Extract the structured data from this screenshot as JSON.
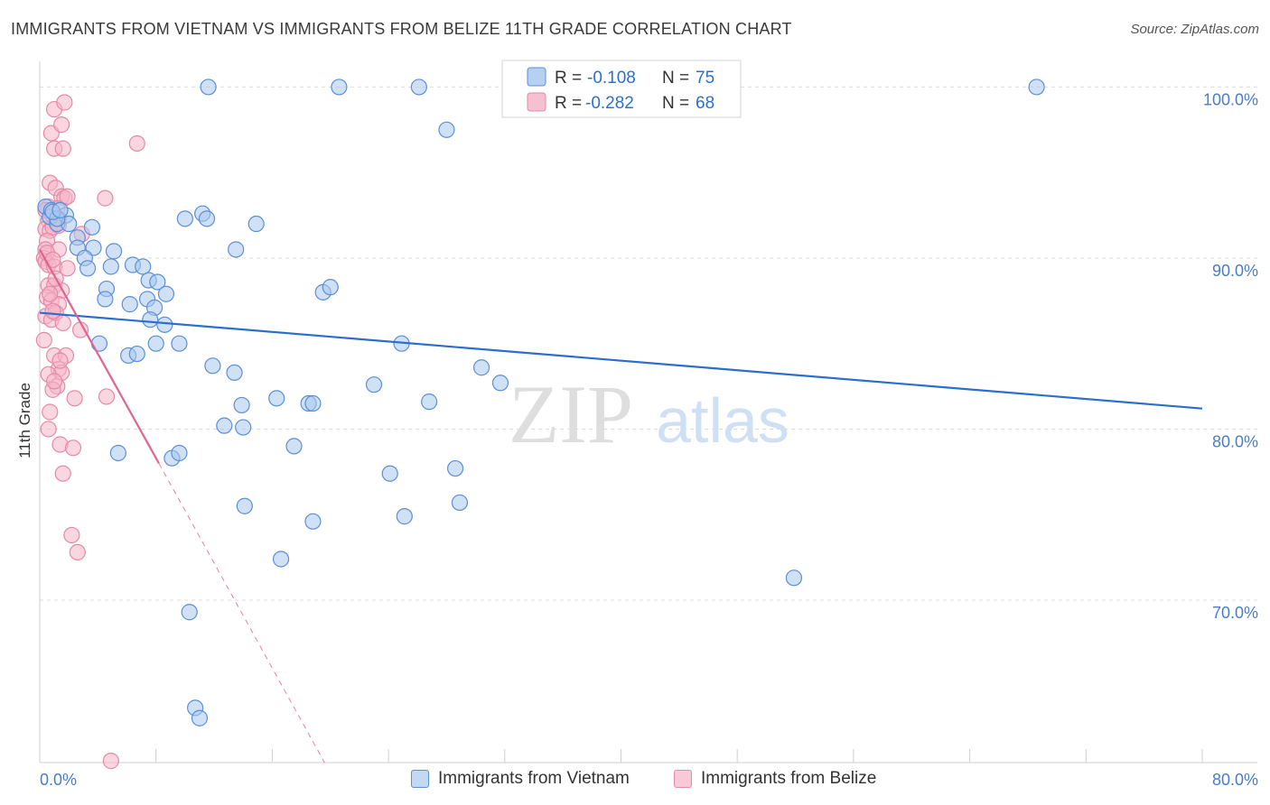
{
  "chart_data": {
    "type": "scatter",
    "title": "IMMIGRANTS FROM VIETNAM VS IMMIGRANTS FROM BELIZE 11TH GRADE CORRELATION CHART",
    "source": "Source: ZipAtlas.com",
    "ylabel": "11th Grade",
    "xlabel": "",
    "xlim": [
      0,
      80
    ],
    "ylim": [
      60.5,
      101.5
    ],
    "x_tick_labels": [
      "0.0%",
      "80.0%"
    ],
    "y_ticks": [
      70,
      80,
      90,
      100
    ],
    "y_tick_labels": [
      "70.0%",
      "80.0%",
      "90.0%",
      "100.0%"
    ],
    "watermark": {
      "zip": "ZIP",
      "atlas": "atlas"
    },
    "legend": {
      "r_label": "R =",
      "n_label": "N =",
      "entries": [
        {
          "name": "Immigrants from Vietnam",
          "r": "-0.108",
          "n": "75"
        },
        {
          "name": "Immigrants from Belize",
          "r": "-0.282",
          "n": "68"
        }
      ]
    },
    "colors": {
      "vietnam_fill": "#a9c8ee",
      "vietnam_stroke": "#5b8fd6",
      "vietnam_line": "#2b6fcc",
      "belize_fill": "#f6b5c8",
      "belize_stroke": "#e58aa6",
      "belize_line": "#e0648f",
      "tick_label": "#4b7cc9",
      "grid": "#dcdcdc"
    },
    "series": [
      {
        "name": "Immigrants from Vietnam",
        "trend": {
          "x0": 0,
          "y0": 86.8,
          "x1": 80,
          "y1": 81.2,
          "dashed_to": null
        },
        "points": [
          [
            0.4,
            93.0
          ],
          [
            0.7,
            92.4
          ],
          [
            0.8,
            92.8
          ],
          [
            1.2,
            92.0
          ],
          [
            1.8,
            92.5
          ],
          [
            2.0,
            92.0
          ],
          [
            1.2,
            92.3
          ],
          [
            3.6,
            91.8
          ],
          [
            2.6,
            91.2
          ],
          [
            2.6,
            90.6
          ],
          [
            3.7,
            90.6
          ],
          [
            3.1,
            90.0
          ],
          [
            5.1,
            90.4
          ],
          [
            3.3,
            89.4
          ],
          [
            4.9,
            89.5
          ],
          [
            6.4,
            89.6
          ],
          [
            7.1,
            89.5
          ],
          [
            7.5,
            88.7
          ],
          [
            8.1,
            88.6
          ],
          [
            4.6,
            88.2
          ],
          [
            8.7,
            87.9
          ],
          [
            4.5,
            87.6
          ],
          [
            7.4,
            87.6
          ],
          [
            6.2,
            87.3
          ],
          [
            7.9,
            87.1
          ],
          [
            7.6,
            86.4
          ],
          [
            8.6,
            86.1
          ],
          [
            4.1,
            85.0
          ],
          [
            8.0,
            85.0
          ],
          [
            9.6,
            85.0
          ],
          [
            6.1,
            84.3
          ],
          [
            6.7,
            84.4
          ],
          [
            11.9,
            83.7
          ],
          [
            13.4,
            83.3
          ],
          [
            10.0,
            92.3
          ],
          [
            11.2,
            92.6
          ],
          [
            11.5,
            92.3
          ],
          [
            14.9,
            92.0
          ],
          [
            13.5,
            90.5
          ],
          [
            19.5,
            88.0
          ],
          [
            20.0,
            88.3
          ],
          [
            13.9,
            81.4
          ],
          [
            16.3,
            81.8
          ],
          [
            18.5,
            81.5
          ],
          [
            18.8,
            81.5
          ],
          [
            12.7,
            80.2
          ],
          [
            14.0,
            80.1
          ],
          [
            23.0,
            82.6
          ],
          [
            24.9,
            85.0
          ],
          [
            26.8,
            81.6
          ],
          [
            30.4,
            83.6
          ],
          [
            31.7,
            82.7
          ],
          [
            17.5,
            79.0
          ],
          [
            5.4,
            78.6
          ],
          [
            9.1,
            78.3
          ],
          [
            9.6,
            78.6
          ],
          [
            24.1,
            77.4
          ],
          [
            28.6,
            77.7
          ],
          [
            28.9,
            75.7
          ],
          [
            14.1,
            75.5
          ],
          [
            18.8,
            74.6
          ],
          [
            25.1,
            74.9
          ],
          [
            16.6,
            72.4
          ],
          [
            51.9,
            71.3
          ],
          [
            10.3,
            69.3
          ],
          [
            10.7,
            63.7
          ],
          [
            11.0,
            63.1
          ],
          [
            11.6,
            100.0
          ],
          [
            20.6,
            100.0
          ],
          [
            26.1,
            100.0
          ],
          [
            43.0,
            100.0
          ],
          [
            68.6,
            100.0
          ],
          [
            28.0,
            97.5
          ],
          [
            0.9,
            92.7
          ],
          [
            1.4,
            92.8
          ]
        ]
      },
      {
        "name": "Immigrants from Belize",
        "trend": {
          "x0": 0,
          "y0": 90.5,
          "x1": 8.2,
          "y1": 78.0,
          "dashed_to": {
            "x": 19.6,
            "y": 60.5
          }
        },
        "points": [
          [
            1.0,
            98.7
          ],
          [
            1.7,
            99.1
          ],
          [
            0.8,
            97.3
          ],
          [
            1.5,
            97.8
          ],
          [
            1.0,
            96.4
          ],
          [
            1.6,
            96.4
          ],
          [
            6.7,
            96.7
          ],
          [
            0.7,
            94.4
          ],
          [
            1.1,
            94.1
          ],
          [
            1.5,
            93.6
          ],
          [
            1.7,
            93.5
          ],
          [
            0.6,
            93.0
          ],
          [
            0.4,
            92.8
          ],
          [
            0.6,
            92.2
          ],
          [
            1.3,
            92.3
          ],
          [
            0.4,
            91.7
          ],
          [
            0.7,
            91.6
          ],
          [
            0.9,
            91.8
          ],
          [
            1.3,
            91.9
          ],
          [
            2.9,
            91.4
          ],
          [
            0.5,
            91.0
          ],
          [
            0.4,
            90.5
          ],
          [
            1.3,
            90.5
          ],
          [
            0.3,
            90.0
          ],
          [
            0.4,
            89.8
          ],
          [
            0.6,
            89.6
          ],
          [
            1.0,
            89.5
          ],
          [
            1.9,
            89.4
          ],
          [
            0.6,
            88.4
          ],
          [
            1.0,
            88.4
          ],
          [
            1.5,
            88.1
          ],
          [
            0.5,
            87.7
          ],
          [
            0.8,
            87.5
          ],
          [
            1.3,
            87.3
          ],
          [
            0.4,
            86.6
          ],
          [
            0.8,
            86.4
          ],
          [
            1.1,
            86.8
          ],
          [
            1.6,
            86.2
          ],
          [
            2.8,
            85.8
          ],
          [
            0.3,
            85.2
          ],
          [
            1.0,
            84.3
          ],
          [
            1.8,
            84.3
          ],
          [
            1.3,
            83.5
          ],
          [
            1.5,
            83.3
          ],
          [
            0.6,
            83.2
          ],
          [
            1.2,
            82.5
          ],
          [
            0.9,
            82.3
          ],
          [
            2.4,
            81.8
          ],
          [
            4.6,
            81.9
          ],
          [
            0.6,
            80.0
          ],
          [
            1.4,
            79.1
          ],
          [
            2.3,
            78.9
          ],
          [
            1.6,
            77.4
          ],
          [
            2.2,
            73.8
          ],
          [
            2.6,
            72.8
          ],
          [
            4.9,
            60.6
          ],
          [
            4.5,
            93.5
          ],
          [
            1.9,
            93.6
          ],
          [
            1.2,
            92.9
          ],
          [
            0.8,
            92.6
          ],
          [
            0.5,
            90.3
          ],
          [
            0.9,
            89.9
          ],
          [
            1.1,
            88.8
          ],
          [
            0.7,
            87.9
          ],
          [
            0.9,
            86.9
          ],
          [
            1.4,
            84.0
          ],
          [
            1.0,
            82.8
          ],
          [
            0.7,
            81.0
          ]
        ]
      }
    ]
  }
}
